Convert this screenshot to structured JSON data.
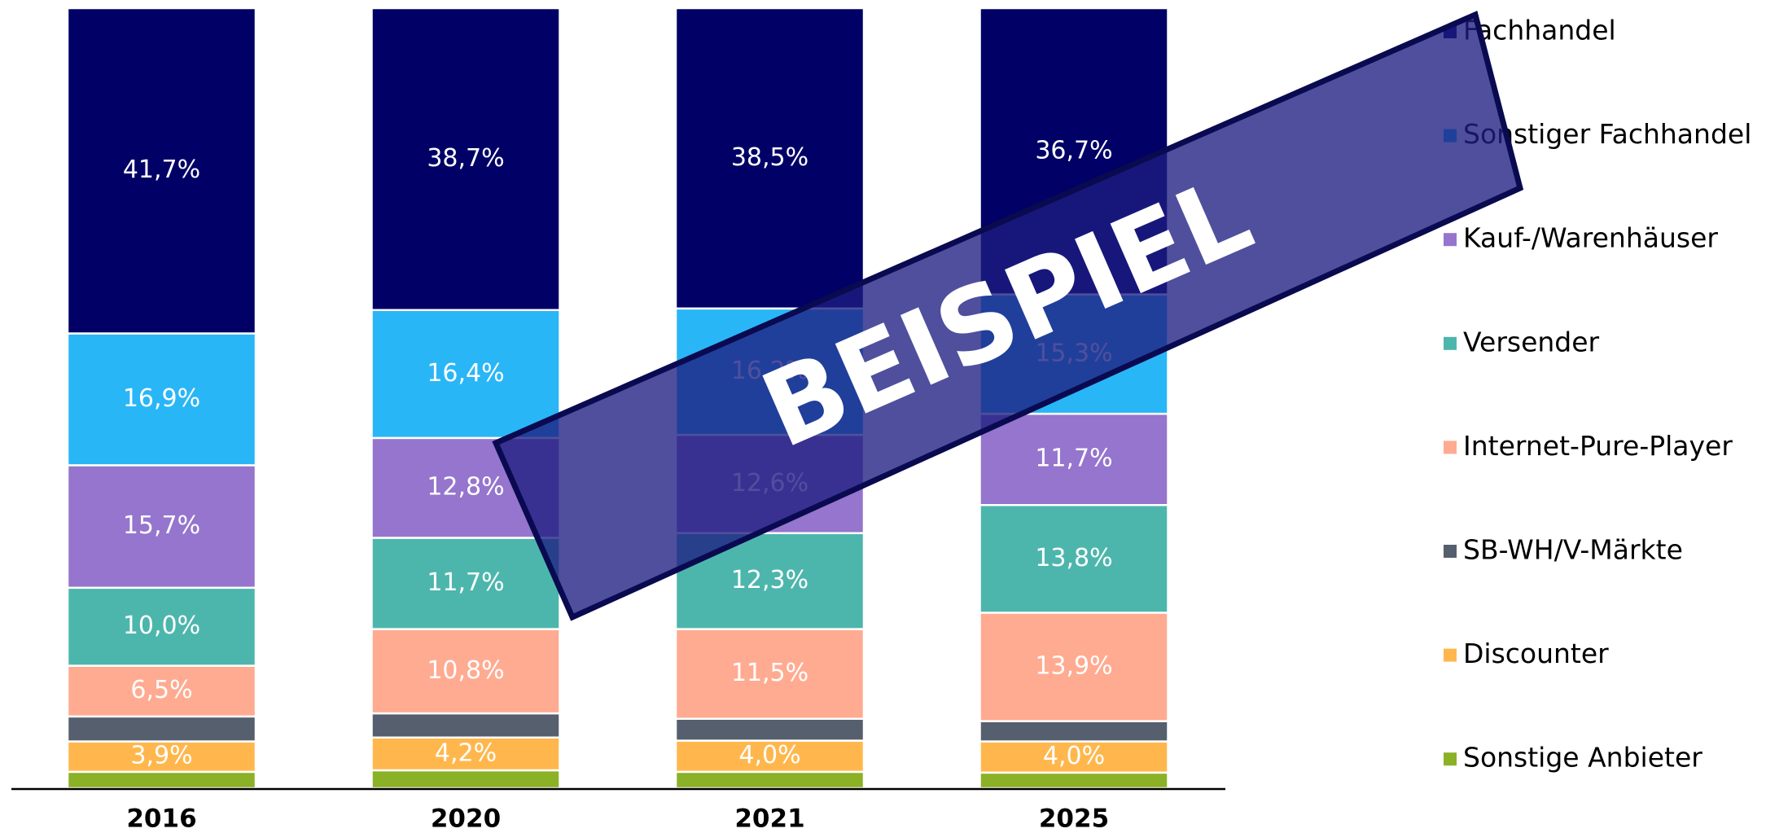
{
  "chart_data": {
    "type": "stacked_bar",
    "categories": [
      "2016",
      "2020",
      "2021",
      "2025"
    ],
    "ylim": [
      0,
      100
    ],
    "watermark": "BEISPIEL",
    "series": [
      {
        "name": "Sonstige Anbieter",
        "color": "#8bb126",
        "values": [
          2.1,
          2.3,
          2.1,
          2.0
        ]
      },
      {
        "name": "Discounter",
        "color": "#ffb74d",
        "values": [
          3.9,
          4.2,
          4.0,
          4.0
        ],
        "value_labels": [
          "3,9%",
          "4,2%",
          "4,0%",
          "4,0%"
        ]
      },
      {
        "name": "SB-WH/V-Märkte",
        "color": "#555f6e",
        "values": [
          3.2,
          3.1,
          2.8,
          2.6
        ]
      },
      {
        "name": "Internet-Pure-Player",
        "color": "#ffab91",
        "values": [
          6.5,
          10.8,
          11.5,
          13.9
        ],
        "value_labels": [
          "6,5%",
          "10,8%",
          "11,5%",
          "13,9%"
        ]
      },
      {
        "name": "Versender",
        "color": "#4db6ac",
        "values": [
          10.0,
          11.7,
          12.3,
          13.8
        ],
        "value_labels": [
          "10,0%",
          "11,7%",
          "12,3%",
          "13,8%"
        ]
      },
      {
        "name": "Kauf-/Warenhäuser",
        "color": "#9575cd",
        "values": [
          15.7,
          12.8,
          12.6,
          11.7
        ],
        "value_labels": [
          "15,7%",
          "12,8%",
          "12,6%",
          "11,7%"
        ]
      },
      {
        "name": "Sonstiger Fachhandel",
        "color": "#29b6f6",
        "values": [
          16.9,
          16.4,
          16.2,
          15.3
        ],
        "value_labels": [
          "16,9%",
          "16,4%",
          "16,2%",
          "15,3%"
        ]
      },
      {
        "name": "Fachhandel",
        "color": "#000066",
        "values": [
          41.7,
          38.7,
          38.5,
          36.7
        ],
        "value_labels": [
          "41,7%",
          "38,7%",
          "38,5%",
          "36,7%"
        ]
      }
    ]
  }
}
